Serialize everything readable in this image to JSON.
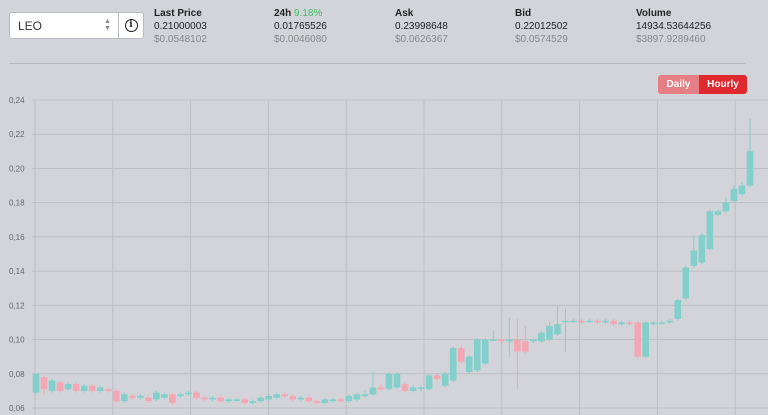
{
  "selector": {
    "token": "LEO"
  },
  "stats": [
    {
      "label": "Last Price",
      "pct": "",
      "value": "0.21000003",
      "usd": "$0.0548102",
      "green": false
    },
    {
      "label": "24h",
      "pct": "9.18%",
      "value": "0.01765526",
      "usd": "$0.0046080",
      "green": true
    },
    {
      "label": "Ask",
      "pct": "",
      "value": "0.23998648",
      "usd": "$0.0626367",
      "green": false
    },
    {
      "label": "Bid",
      "pct": "",
      "value": "0.22012502",
      "usd": "$0.0574529",
      "green": false
    },
    {
      "label": "Volume",
      "pct": "",
      "value": "14934.53644256",
      "usd": "$3897.9289460",
      "green": false
    }
  ],
  "toggle": {
    "daily": "Daily",
    "hourly": "Hourly"
  },
  "colors": {
    "up": "#82cfcc",
    "down": "#f2a7b3",
    "active": "#e0282f",
    "inactive": "#e57f85"
  },
  "chart_data": {
    "type": "candlestick",
    "y_ticks": [
      "0,06",
      "0,08",
      "0,10",
      "0,12",
      "0,14",
      "0,16",
      "0,18",
      "0,20",
      "0,22",
      "0,24"
    ],
    "ylim": [
      0.06,
      0.24
    ],
    "grid": true,
    "candles": [
      [
        0.069,
        0.08,
        0.08,
        0.068
      ],
      [
        0.078,
        0.071,
        0.079,
        0.068
      ],
      [
        0.07,
        0.076,
        0.077,
        0.069
      ],
      [
        0.075,
        0.07,
        0.076,
        0.069
      ],
      [
        0.071,
        0.074,
        0.075,
        0.07
      ],
      [
        0.074,
        0.07,
        0.075,
        0.069
      ],
      [
        0.07,
        0.073,
        0.074,
        0.069
      ],
      [
        0.073,
        0.07,
        0.074,
        0.069
      ],
      [
        0.07,
        0.072,
        0.073,
        0.069
      ],
      [
        0.071,
        0.07,
        0.072,
        0.069
      ],
      [
        0.07,
        0.064,
        0.071,
        0.063
      ],
      [
        0.064,
        0.068,
        0.069,
        0.063
      ],
      [
        0.067,
        0.066,
        0.068,
        0.065
      ],
      [
        0.066,
        0.067,
        0.068,
        0.065
      ],
      [
        0.066,
        0.064,
        0.067,
        0.063
      ],
      [
        0.065,
        0.069,
        0.07,
        0.064
      ],
      [
        0.066,
        0.068,
        0.069,
        0.065
      ],
      [
        0.068,
        0.063,
        0.069,
        0.062
      ],
      [
        0.067,
        0.068,
        0.069,
        0.066
      ],
      [
        0.068,
        0.069,
        0.07,
        0.067
      ],
      [
        0.069,
        0.066,
        0.07,
        0.065
      ],
      [
        0.066,
        0.065,
        0.067,
        0.064
      ],
      [
        0.065,
        0.066,
        0.067,
        0.064
      ],
      [
        0.066,
        0.064,
        0.067,
        0.063
      ],
      [
        0.064,
        0.065,
        0.066,
        0.063
      ],
      [
        0.065,
        0.065,
        0.066,
        0.064
      ],
      [
        0.065,
        0.063,
        0.066,
        0.062
      ],
      [
        0.063,
        0.064,
        0.065,
        0.062
      ],
      [
        0.064,
        0.066,
        0.067,
        0.063
      ],
      [
        0.065,
        0.067,
        0.068,
        0.064
      ],
      [
        0.066,
        0.068,
        0.069,
        0.065
      ],
      [
        0.068,
        0.067,
        0.069,
        0.066
      ],
      [
        0.067,
        0.065,
        0.068,
        0.064
      ],
      [
        0.065,
        0.066,
        0.067,
        0.064
      ],
      [
        0.066,
        0.064,
        0.067,
        0.063
      ],
      [
        0.064,
        0.063,
        0.065,
        0.062
      ],
      [
        0.063,
        0.065,
        0.066,
        0.062
      ],
      [
        0.064,
        0.065,
        0.066,
        0.063
      ],
      [
        0.065,
        0.064,
        0.066,
        0.063
      ],
      [
        0.064,
        0.067,
        0.068,
        0.063
      ],
      [
        0.065,
        0.068,
        0.069,
        0.064
      ],
      [
        0.067,
        0.068,
        0.07,
        0.066
      ],
      [
        0.068,
        0.072,
        0.081,
        0.067
      ],
      [
        0.072,
        0.071,
        0.074,
        0.07
      ],
      [
        0.071,
        0.08,
        0.081,
        0.07
      ],
      [
        0.072,
        0.08,
        0.081,
        0.071
      ],
      [
        0.074,
        0.07,
        0.075,
        0.069
      ],
      [
        0.07,
        0.072,
        0.073,
        0.069
      ],
      [
        0.072,
        0.072,
        0.073,
        0.07
      ],
      [
        0.071,
        0.079,
        0.08,
        0.07
      ],
      [
        0.079,
        0.077,
        0.08,
        0.076
      ],
      [
        0.073,
        0.08,
        0.081,
        0.072
      ],
      [
        0.076,
        0.095,
        0.096,
        0.075
      ],
      [
        0.095,
        0.087,
        0.096,
        0.086
      ],
      [
        0.081,
        0.09,
        0.091,
        0.08
      ],
      [
        0.082,
        0.1,
        0.101,
        0.081
      ],
      [
        0.086,
        0.1,
        0.101,
        0.085
      ],
      [
        0.1,
        0.1,
        0.105,
        0.099
      ],
      [
        0.1,
        0.099,
        0.101,
        0.098
      ],
      [
        0.099,
        0.1,
        0.113,
        0.09
      ],
      [
        0.1,
        0.093,
        0.112,
        0.071
      ],
      [
        0.099,
        0.093,
        0.108,
        0.092
      ],
      [
        0.099,
        0.1,
        0.101,
        0.098
      ],
      [
        0.099,
        0.104,
        0.105,
        0.098
      ],
      [
        0.1,
        0.108,
        0.11,
        0.099
      ],
      [
        0.103,
        0.109,
        0.12,
        0.102
      ],
      [
        0.111,
        0.111,
        0.118,
        0.093
      ],
      [
        0.111,
        0.111,
        0.112,
        0.11
      ],
      [
        0.111,
        0.11,
        0.112,
        0.109
      ],
      [
        0.111,
        0.111,
        0.112,
        0.11
      ],
      [
        0.111,
        0.11,
        0.112,
        0.109
      ],
      [
        0.11,
        0.111,
        0.112,
        0.109
      ],
      [
        0.111,
        0.109,
        0.112,
        0.108
      ],
      [
        0.109,
        0.11,
        0.111,
        0.108
      ],
      [
        0.11,
        0.109,
        0.111,
        0.108
      ],
      [
        0.11,
        0.09,
        0.111,
        0.089
      ],
      [
        0.09,
        0.11,
        0.111,
        0.089
      ],
      [
        0.109,
        0.11,
        0.111,
        0.108
      ],
      [
        0.11,
        0.11,
        0.111,
        0.109
      ],
      [
        0.11,
        0.111,
        0.112,
        0.109
      ],
      [
        0.112,
        0.123,
        0.124,
        0.111
      ],
      [
        0.124,
        0.142,
        0.143,
        0.123
      ],
      [
        0.143,
        0.152,
        0.161,
        0.142
      ],
      [
        0.145,
        0.161,
        0.162,
        0.144
      ],
      [
        0.153,
        0.175,
        0.176,
        0.152
      ],
      [
        0.173,
        0.175,
        0.176,
        0.172
      ],
      [
        0.175,
        0.18,
        0.183,
        0.174
      ],
      [
        0.181,
        0.188,
        0.19,
        0.18
      ],
      [
        0.185,
        0.19,
        0.192,
        0.184
      ],
      [
        0.19,
        0.21,
        0.229,
        0.189
      ]
    ]
  }
}
